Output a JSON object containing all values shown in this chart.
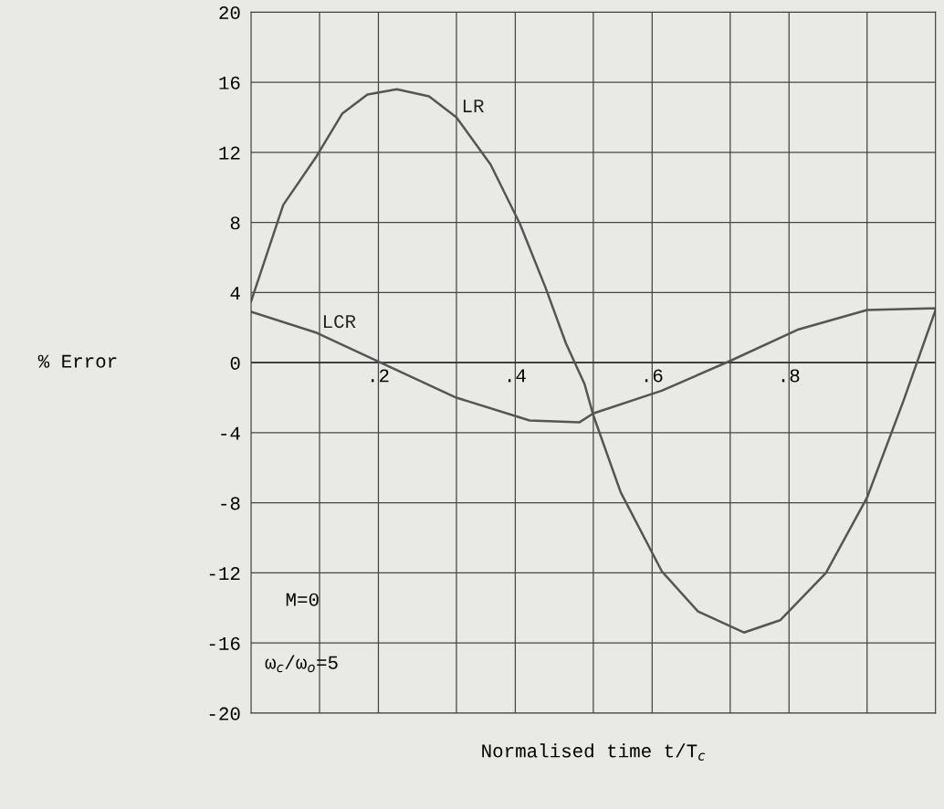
{
  "chart_data": {
    "type": "line",
    "xlabel": "Normalised time t/T$_{c}$",
    "ylabel": "% Error",
    "xlim": [
      0.014,
      1.014
    ],
    "ylim": [
      -20,
      20
    ],
    "xticks": [
      {
        "value": 0.114,
        "label": null
      },
      {
        "value": 0.2,
        "label": ".2"
      },
      {
        "value": 0.314,
        "label": null
      },
      {
        "value": 0.4,
        "label": ".4"
      },
      {
        "value": 0.514,
        "label": null
      },
      {
        "value": 0.6,
        "label": ".6"
      },
      {
        "value": 0.714,
        "label": null
      },
      {
        "value": 0.8,
        "label": ".8"
      },
      {
        "value": 0.914,
        "label": null
      }
    ],
    "yticks": [
      -20,
      -16,
      -12,
      -8,
      -4,
      0,
      4,
      8,
      12,
      16,
      20
    ],
    "grid": true,
    "legend": false,
    "series": [
      {
        "name": "LR",
        "color": "#555555",
        "x": [
          0.014,
          0.061,
          0.11,
          0.147,
          0.184,
          0.227,
          0.274,
          0.314,
          0.364,
          0.407,
          0.444,
          0.474,
          0.501,
          0.514,
          0.554,
          0.614,
          0.667,
          0.734,
          0.787,
          0.854,
          0.914,
          0.967,
          1.014
        ],
        "values": [
          3.5,
          9.0,
          11.8,
          14.2,
          15.3,
          15.6,
          15.2,
          14.0,
          11.3,
          7.9,
          4.3,
          1.1,
          -1.2,
          -3.0,
          -7.4,
          -11.9,
          -14.2,
          -15.4,
          -14.7,
          -12.0,
          -7.7,
          -2.2,
          3.0
        ]
      },
      {
        "name": "LCR",
        "color": "#555555",
        "x": [
          0.014,
          0.11,
          0.214,
          0.314,
          0.421,
          0.494,
          0.514,
          0.614,
          0.714,
          0.814,
          0.914,
          1.014
        ],
        "values": [
          2.9,
          1.7,
          -0.2,
          -2.0,
          -3.3,
          -3.4,
          -2.9,
          -1.6,
          0.1,
          1.9,
          3.0,
          3.1
        ]
      }
    ],
    "annotations": [
      "M=0",
      "ω$_{c}$/ω$_{o}$=5"
    ]
  }
}
